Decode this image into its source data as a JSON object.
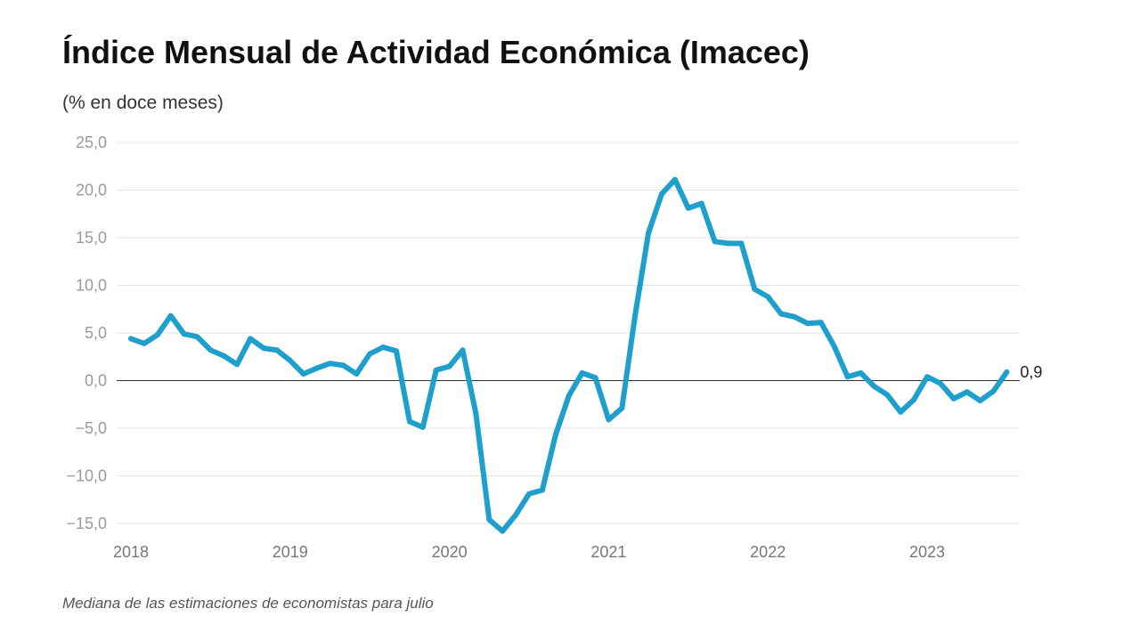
{
  "title": "Índice Mensual de Actividad Económica (Imacec)",
  "subtitle": "(% en doce meses)",
  "footnote": "Mediana de las estimaciones de economistas para julio",
  "chart_data": {
    "type": "line",
    "title": "Índice Mensual de Actividad Económica (Imacec)",
    "subtitle": "(% en doce meses)",
    "xlabel": "",
    "ylabel": "",
    "x_ticks": [
      "2018",
      "2019",
      "2020",
      "2021",
      "2022",
      "2023"
    ],
    "y_ticks": [
      "25,0",
      "20,0",
      "15,0",
      "10,0",
      "5,0",
      "0,0",
      "−5,0",
      "−10,0",
      "−15,0"
    ],
    "y_tick_values": [
      25,
      20,
      15,
      10,
      5,
      0,
      -5,
      -10,
      -15
    ],
    "ylim": [
      -15,
      25
    ],
    "xlim": [
      "2018-01",
      "2023-10"
    ],
    "grid": true,
    "zero_line": true,
    "line_color": "#1f9fcc",
    "end_label": "0,9",
    "series": [
      {
        "x": [
          "2018-01",
          "2018-02",
          "2018-03",
          "2018-04",
          "2018-05",
          "2018-06",
          "2018-07",
          "2018-08",
          "2018-09",
          "2018-10",
          "2018-11",
          "2018-12",
          "2019-01",
          "2019-02",
          "2019-03",
          "2019-04",
          "2019-05",
          "2019-06",
          "2019-07",
          "2019-08",
          "2019-09",
          "2019-10",
          "2019-11",
          "2019-12",
          "2020-01",
          "2020-02",
          "2020-03",
          "2020-04",
          "2020-05",
          "2020-06",
          "2020-07",
          "2020-08",
          "2020-09",
          "2020-10",
          "2020-11",
          "2020-12",
          "2021-01",
          "2021-02",
          "2021-03",
          "2021-04",
          "2021-05",
          "2021-06",
          "2021-07",
          "2021-08",
          "2021-09",
          "2021-10",
          "2021-11",
          "2021-12",
          "2022-01",
          "2022-02",
          "2022-03",
          "2022-04",
          "2022-05",
          "2022-06",
          "2022-07",
          "2022-08",
          "2022-09",
          "2022-10",
          "2022-11",
          "2022-12",
          "2023-01",
          "2023-02",
          "2023-03",
          "2023-04",
          "2023-05",
          "2023-06",
          "2023-07"
        ],
        "values": [
          4.4,
          3.9,
          4.8,
          6.8,
          4.9,
          4.6,
          3.2,
          2.6,
          1.7,
          4.4,
          3.4,
          3.2,
          2.1,
          0.7,
          1.3,
          1.8,
          1.6,
          0.7,
          2.8,
          3.5,
          3.1,
          -4.3,
          -4.9,
          1.1,
          1.5,
          3.2,
          -3.5,
          -14.6,
          -15.8,
          -14.1,
          -11.9,
          -11.5,
          -5.7,
          -1.6,
          0.8,
          0.3,
          -4.1,
          -2.9,
          6.9,
          15.5,
          19.6,
          21.1,
          18.1,
          18.6,
          14.6,
          14.4,
          14.4,
          9.6,
          8.8,
          7.0,
          6.7,
          6.0,
          6.1,
          3.6,
          0.4,
          0.8,
          -0.6,
          -1.5,
          -3.3,
          -2.0,
          0.4,
          -0.3,
          -1.9,
          -1.2,
          -2.1,
          -1.1,
          0.9
        ]
      }
    ]
  }
}
